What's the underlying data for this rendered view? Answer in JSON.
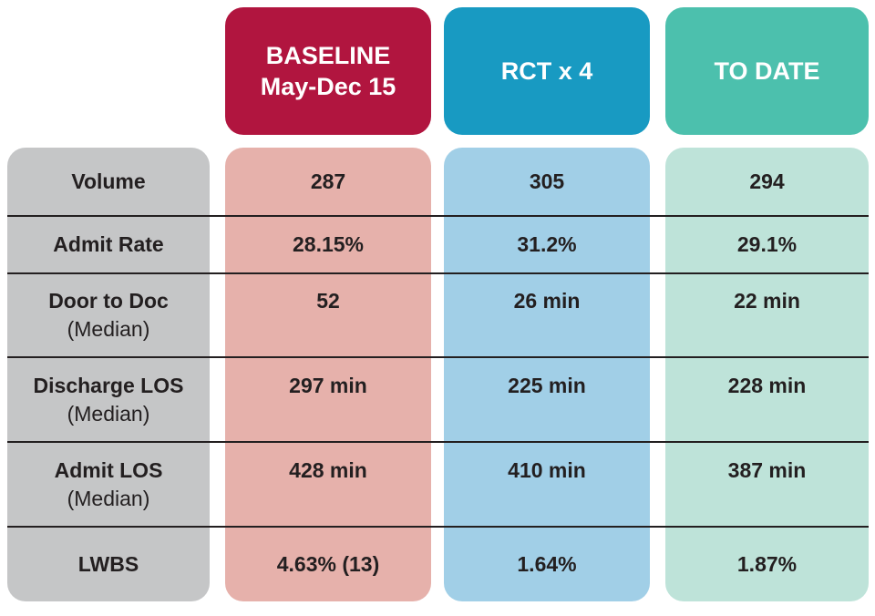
{
  "chart_data": {
    "type": "table",
    "title": "",
    "columns": [
      {
        "key": "label",
        "label": ""
      },
      {
        "key": "baseline",
        "label": "BASELINE May-Dec 15",
        "line1": "BASELINE",
        "line2": "May-Dec 15",
        "header_bg": "#b1153f",
        "body_bg": "#e6b1ab"
      },
      {
        "key": "rct",
        "label": "RCT x 4",
        "header_bg": "#189ac2",
        "body_bg": "#a1cfe7"
      },
      {
        "key": "todate",
        "label": "TO DATE",
        "header_bg": "#4cc0ad",
        "body_bg": "#bee3d9"
      }
    ],
    "rows": [
      {
        "label": "Volume",
        "sublabel": "",
        "baseline": "287",
        "rct": "305",
        "todate": "294"
      },
      {
        "label": "Admit Rate",
        "sublabel": "",
        "baseline": "28.15%",
        "rct": "31.2%",
        "todate": "29.1%"
      },
      {
        "label": "Door to Doc",
        "sublabel": "(Median)",
        "baseline": "52",
        "rct": "26 min",
        "todate": "22 min"
      },
      {
        "label": "Discharge LOS",
        "sublabel": "(Median)",
        "baseline": "297 min",
        "rct": "225 min",
        "todate": "228 min"
      },
      {
        "label": "Admit LOS",
        "sublabel": "(Median)",
        "baseline": "428 min",
        "rct": "410 min",
        "todate": "387 min"
      },
      {
        "label": "LWBS",
        "sublabel": "",
        "baseline": "4.63% (13)",
        "rct": "1.64%",
        "todate": "1.87%"
      }
    ],
    "colors": {
      "header_baseline": "#b1153f",
      "header_rct": "#189ac2",
      "header_todate": "#4cc0ad",
      "label_column": "#c5c6c7",
      "body_baseline": "#e6b1ab",
      "body_rct": "#a1cfe7",
      "body_todate": "#bee3d9",
      "text": "#231f20",
      "divider": "#231f20",
      "background": "#ffffff"
    },
    "layout": {
      "grid": "row dividers span full width",
      "legend": "none"
    }
  }
}
